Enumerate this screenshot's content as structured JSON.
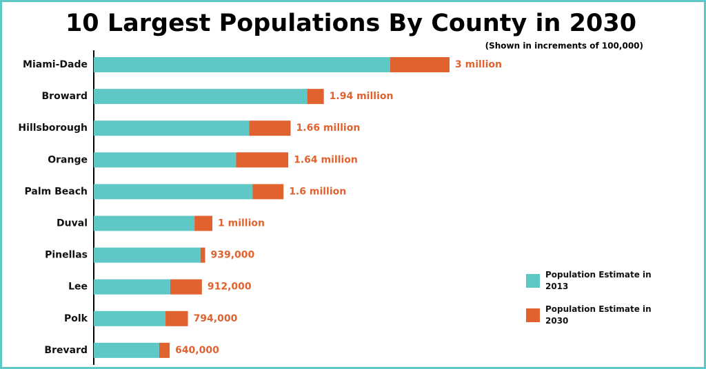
{
  "chart_data": {
    "type": "stacked-bar",
    "orientation": "horizontal",
    "title": "10 Largest Populations By County in 2030",
    "subtitle": "(Shown in increments of 100,000)",
    "categories": [
      "Miami-Dade",
      "Broward",
      "Hillsborough",
      "Orange",
      "Palm Beach",
      "Duval",
      "Pinellas",
      "Lee",
      "Polk",
      "Brevard"
    ],
    "series": [
      {
        "name": "Population Estimate in 2013",
        "color": "#5ec8c6",
        "values": [
          2500000,
          1800000,
          1310000,
          1200000,
          1340000,
          850000,
          900000,
          645000,
          605000,
          552000
        ]
      },
      {
        "name": "Population Estimate in 2030",
        "color": "#e0622f",
        "values": [
          500000,
          140000,
          350000,
          440000,
          260000,
          150000,
          39000,
          267000,
          189000,
          88000
        ]
      }
    ],
    "totals": {
      "values": [
        3000000,
        1940000,
        1660000,
        1640000,
        1600000,
        1000000,
        939000,
        912000,
        794000,
        640000
      ],
      "value_labels": [
        "3 million",
        "1.94 million",
        "1.66 million",
        "1.64 million",
        "1.6 million",
        "1 million",
        "939,000",
        "912,000",
        "794,000",
        "640,000"
      ]
    },
    "legend": "bottom-right"
  }
}
